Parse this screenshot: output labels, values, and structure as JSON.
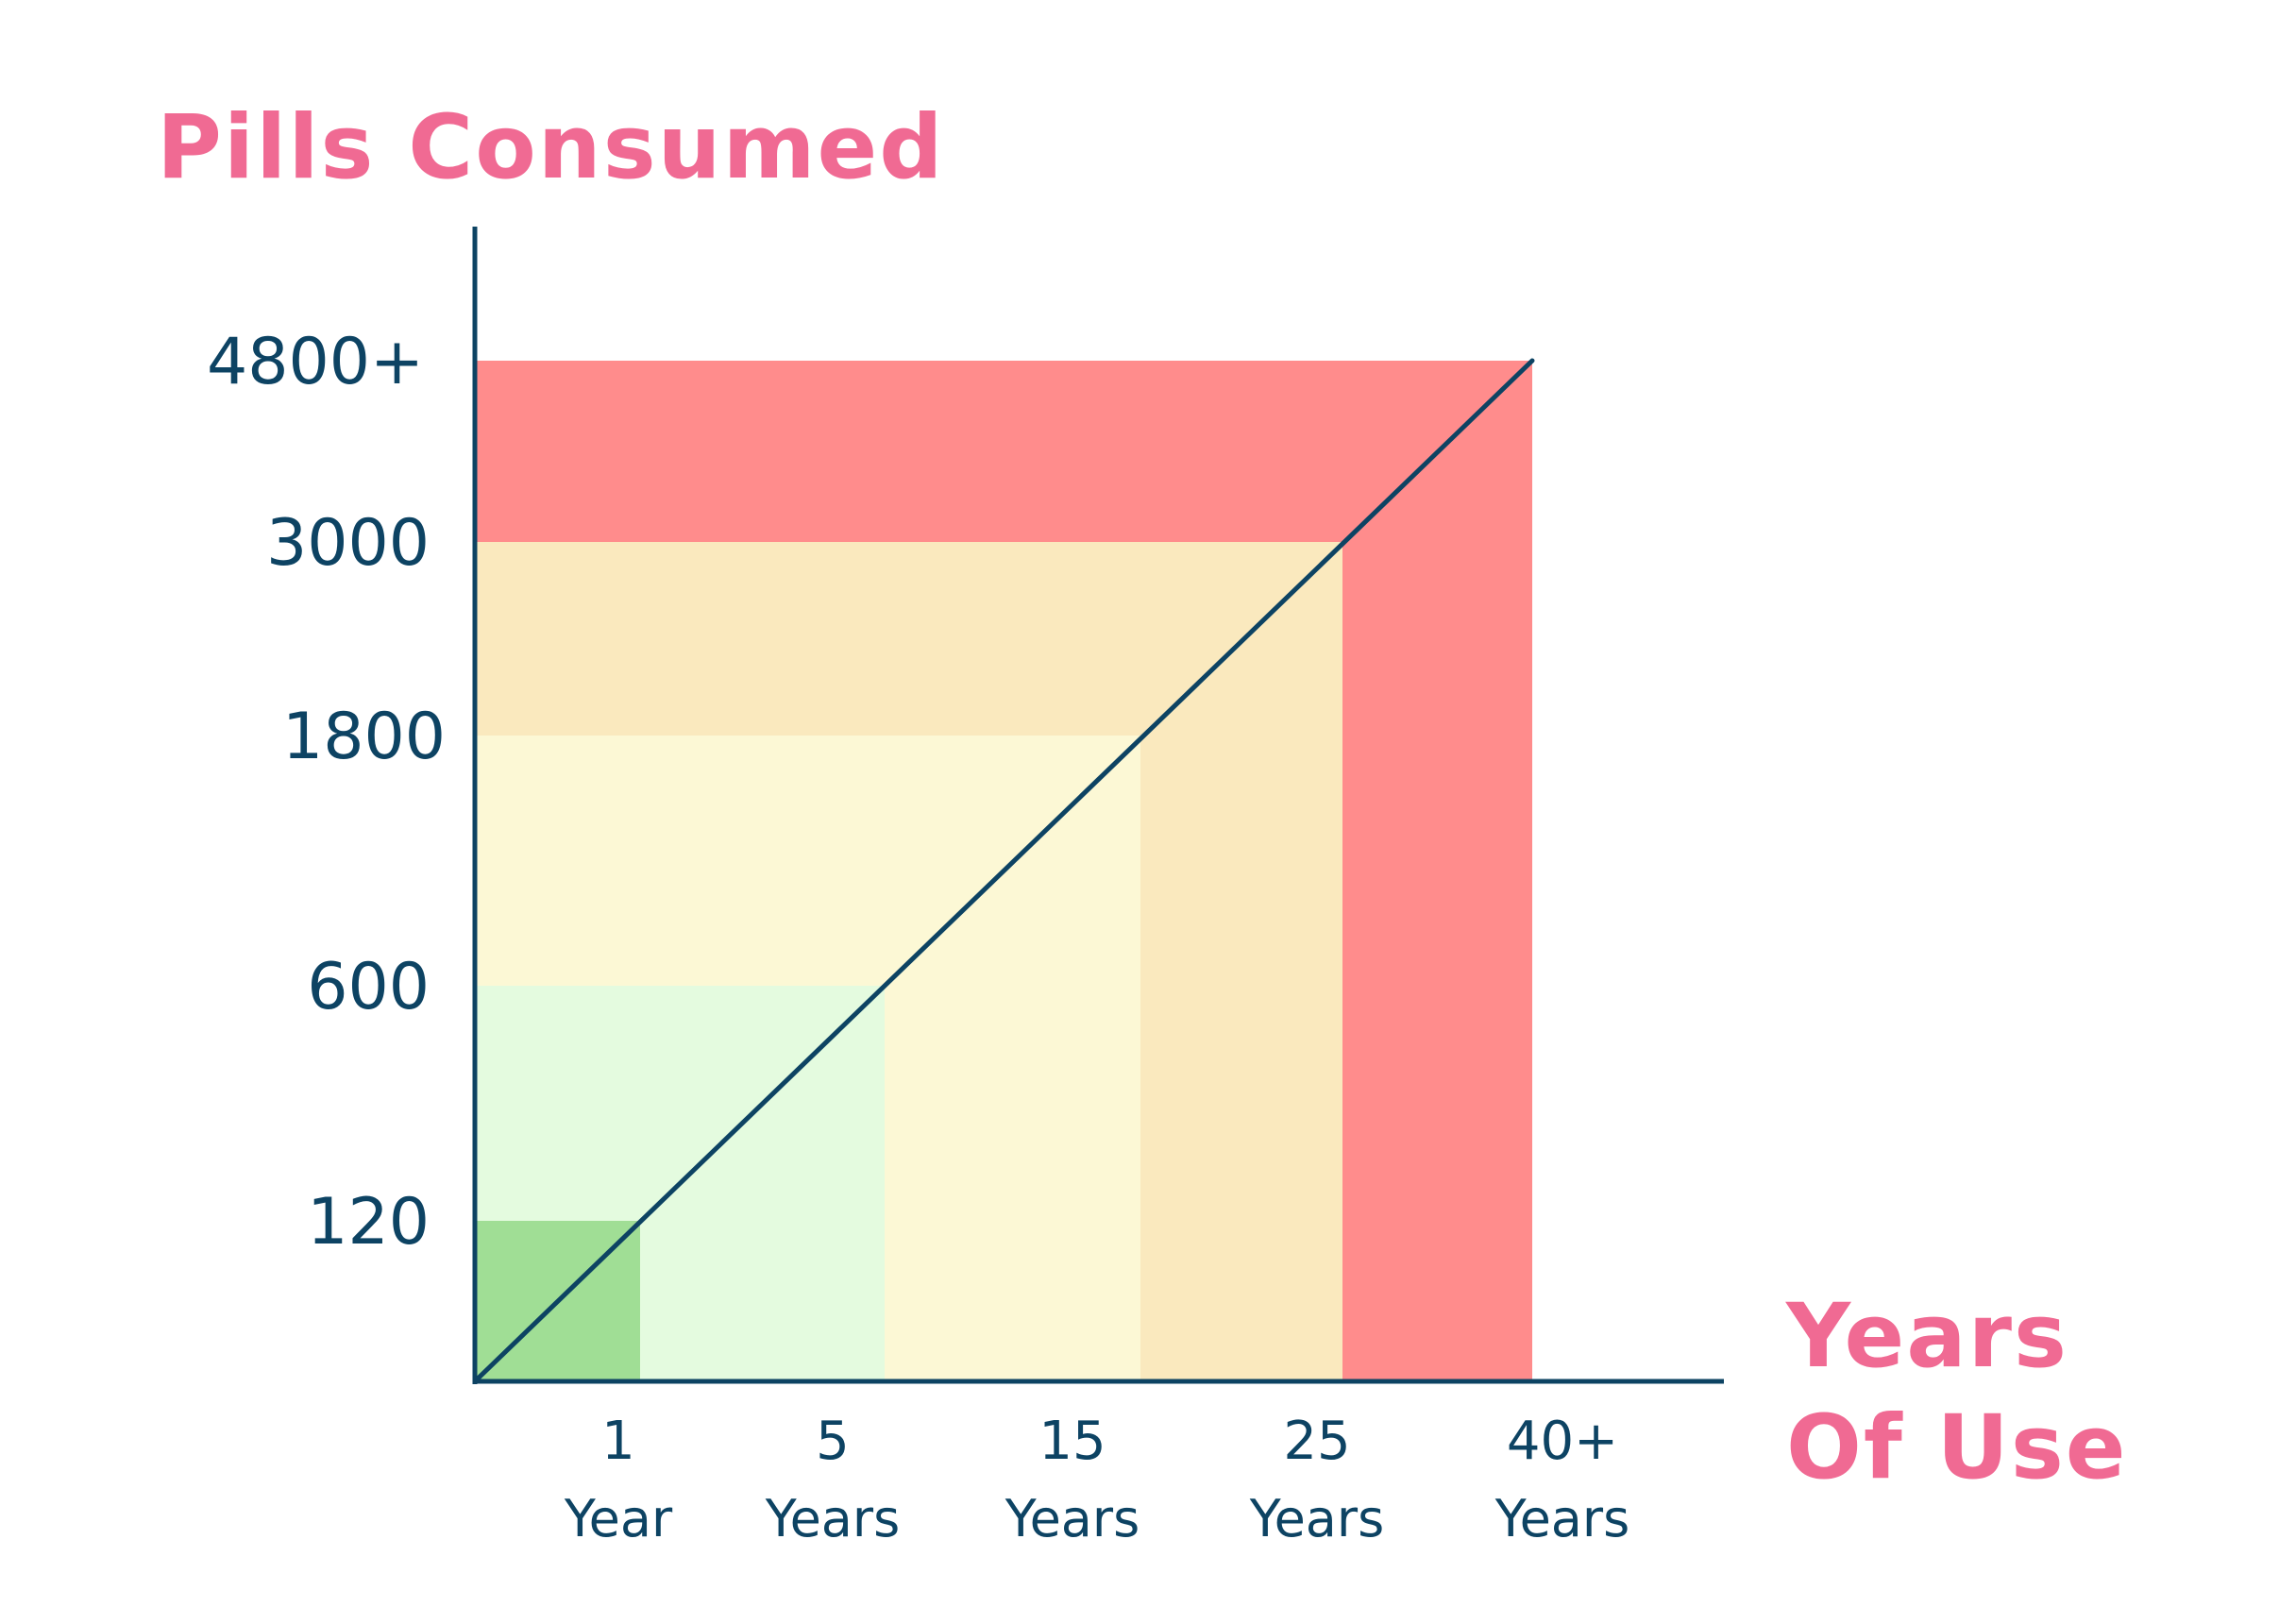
{
  "chart_data": {
    "type": "area",
    "title": "",
    "ylabel": "Pills Consumed",
    "xlabel_lines": [
      "Years",
      "Of Use"
    ],
    "categories": [
      {
        "value": "1",
        "unit": "Year"
      },
      {
        "value": "5",
        "unit": "Years"
      },
      {
        "value": "15",
        "unit": "Years"
      },
      {
        "value": "25",
        "unit": "Years"
      },
      {
        "value": "40+",
        "unit": "Years"
      }
    ],
    "y_ticks": [
      "120",
      "600",
      "1800",
      "3000",
      "4800+"
    ],
    "bands": [
      {
        "x_label": "1 Year",
        "y_label": "120",
        "color": "#A0DE95"
      },
      {
        "x_label": "5 Years",
        "y_label": "600",
        "color": "#E4FBDF"
      },
      {
        "x_label": "15 Years",
        "y_label": "1800",
        "color": "#FCF8D5"
      },
      {
        "x_label": "25 Years",
        "y_label": "3000",
        "color": "#FAE9BE"
      },
      {
        "x_label": "40+ Years",
        "y_label": "4800+",
        "color": "#FF8C8C"
      }
    ],
    "trend_line": {
      "from": "origin",
      "to": "40+ Years / 4800+"
    },
    "colors": {
      "axis": "#0D4363",
      "tick_text": "#0D4363",
      "label_text": "#F06A93",
      "trend_line": "#0D4363"
    },
    "grid": false,
    "legend": "none"
  }
}
